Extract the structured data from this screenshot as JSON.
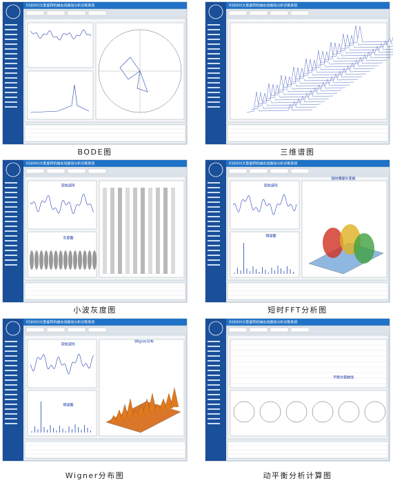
{
  "app_title": "RS8000大型旋转机械在线振动分析诊断系统",
  "panels": [
    {
      "caption": "BODE图"
    },
    {
      "caption": "三维谱图"
    },
    {
      "caption": "小波灰度图",
      "labels": [
        "原始波形",
        "灰度图"
      ]
    },
    {
      "caption": "短时FFT分析图",
      "labels": [
        "原始波形",
        "频谱图",
        "短时傅里叶变换"
      ]
    },
    {
      "caption": "Wigner分布图",
      "labels": [
        "原始波形",
        "频谱图",
        "Wigner分布"
      ]
    },
    {
      "caption": "动平衡分析计算图",
      "labels": [
        "平衡方案曲线"
      ]
    }
  ]
}
